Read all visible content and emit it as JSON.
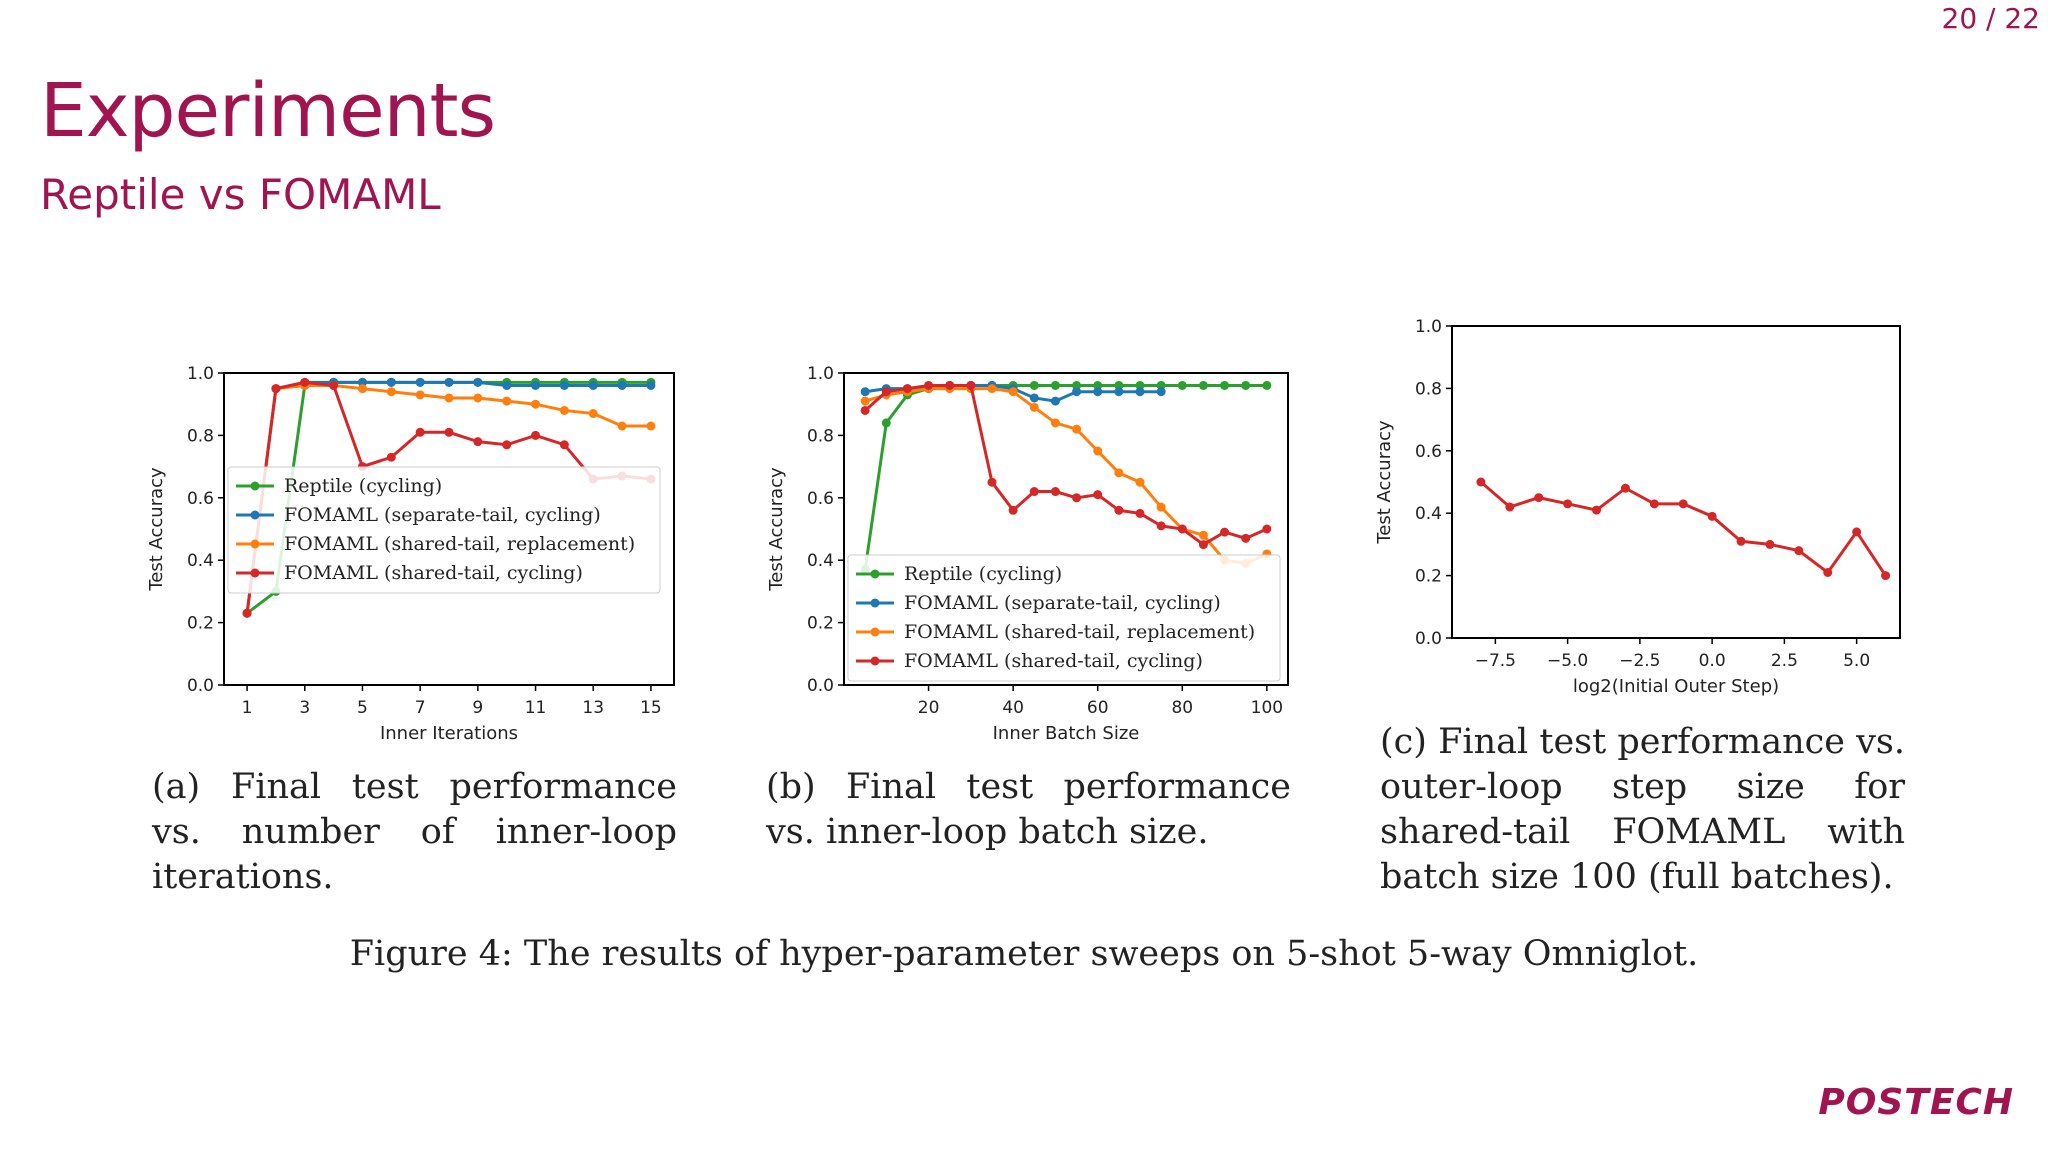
{
  "page_number": "20 / 22",
  "title": "Experiments",
  "subtitle": "Reptile vs FOMAML",
  "figure_caption": "Figure 4: The results of hyper-parameter sweeps on 5-shot 5-way Omniglot.",
  "captions": [
    "(a) Final test performance vs. number of inner-loop iterations.",
    "(b) Final test performance vs. inner-loop batch size.",
    "(c) Final test performance vs. outer-loop step size for shared-tail FOMAML with batch size 100 (full batches)."
  ],
  "logo_text": "POSTECH",
  "colors": {
    "accent": "#a0144f",
    "reptile": "#2ca02c",
    "separate": "#1f77b4",
    "replacement": "#ff7f0e",
    "cycling": "#d62728"
  },
  "chart_data": [
    {
      "type": "line",
      "xlabel": "Inner Iterations",
      "ylabel": "Test Accuracy",
      "xlim": [
        0.2,
        15.8
      ],
      "ylim": [
        0,
        1.0
      ],
      "xticks": [
        1,
        3,
        5,
        7,
        9,
        11,
        13,
        15
      ],
      "yticks": [
        0.0,
        0.2,
        0.4,
        0.6,
        0.8,
        1.0
      ],
      "legend_position": "center-right",
      "series": [
        {
          "name": "Reptile (cycling)",
          "color": "#2ca02c",
          "x": [
            1,
            2,
            3,
            4,
            5,
            6,
            7,
            8,
            9,
            10,
            11,
            12,
            13,
            14,
            15
          ],
          "y": [
            0.23,
            0.3,
            0.96,
            0.97,
            0.97,
            0.97,
            0.97,
            0.97,
            0.97,
            0.97,
            0.97,
            0.97,
            0.97,
            0.97,
            0.97
          ]
        },
        {
          "name": "FOMAML (separate-tail, cycling)",
          "color": "#1f77b4",
          "x": [
            1,
            2,
            3,
            4,
            5,
            6,
            7,
            8,
            9,
            10,
            11,
            12,
            13,
            14,
            15
          ],
          "y": [
            0.23,
            0.95,
            0.97,
            0.97,
            0.97,
            0.97,
            0.97,
            0.97,
            0.97,
            0.96,
            0.96,
            0.96,
            0.96,
            0.96,
            0.96
          ]
        },
        {
          "name": "FOMAML (shared-tail, replacement)",
          "color": "#ff7f0e",
          "x": [
            1,
            2,
            3,
            4,
            5,
            6,
            7,
            8,
            9,
            10,
            11,
            12,
            13,
            14,
            15
          ],
          "y": [
            0.23,
            0.95,
            0.96,
            0.96,
            0.95,
            0.94,
            0.93,
            0.92,
            0.92,
            0.91,
            0.9,
            0.88,
            0.87,
            0.83,
            0.83
          ]
        },
        {
          "name": "FOMAML (shared-tail, cycling)",
          "color": "#d62728",
          "x": [
            1,
            2,
            3,
            4,
            5,
            6,
            7,
            8,
            9,
            10,
            11,
            12,
            13,
            14,
            15
          ],
          "y": [
            0.23,
            0.95,
            0.97,
            0.96,
            0.7,
            0.73,
            0.81,
            0.81,
            0.78,
            0.77,
            0.8,
            0.77,
            0.66,
            0.67,
            0.66
          ]
        }
      ]
    },
    {
      "type": "line",
      "xlabel": "Inner Batch Size",
      "ylabel": "Test Accuracy",
      "xlim": [
        0,
        105
      ],
      "ylim": [
        0,
        1.0
      ],
      "xticks": [
        20,
        40,
        60,
        80,
        100
      ],
      "yticks": [
        0.0,
        0.2,
        0.4,
        0.6,
        0.8,
        1.0
      ],
      "legend_position": "lower-right",
      "series": [
        {
          "name": "Reptile (cycling)",
          "color": "#2ca02c",
          "x": [
            5,
            10,
            15,
            20,
            25,
            30,
            35,
            40,
            45,
            50,
            55,
            60,
            65,
            70,
            75,
            80,
            85,
            90,
            95,
            100
          ],
          "y": [
            0.37,
            0.84,
            0.93,
            0.95,
            0.96,
            0.96,
            0.96,
            0.96,
            0.96,
            0.96,
            0.96,
            0.96,
            0.96,
            0.96,
            0.96,
            0.96,
            0.96,
            0.96,
            0.96,
            0.96
          ]
        },
        {
          "name": "FOMAML (separate-tail, cycling)",
          "color": "#1f77b4",
          "x": [
            5,
            10,
            15,
            20,
            25,
            30,
            35,
            40,
            45,
            50,
            55,
            60,
            65,
            70,
            75
          ],
          "y": [
            0.94,
            0.95,
            0.95,
            0.95,
            0.96,
            0.96,
            0.96,
            0.95,
            0.92,
            0.91,
            0.94,
            0.94,
            0.94,
            0.94,
            0.94
          ]
        },
        {
          "name": "FOMAML (shared-tail, replacement)",
          "color": "#ff7f0e",
          "x": [
            5,
            10,
            15,
            20,
            25,
            30,
            35,
            40,
            45,
            50,
            55,
            60,
            65,
            70,
            75,
            80,
            85,
            90,
            95,
            100
          ],
          "y": [
            0.91,
            0.93,
            0.94,
            0.95,
            0.95,
            0.95,
            0.95,
            0.94,
            0.89,
            0.84,
            0.82,
            0.75,
            0.68,
            0.65,
            0.57,
            0.5,
            0.48,
            0.4,
            0.39,
            0.42
          ]
        },
        {
          "name": "FOMAML (shared-tail, cycling)",
          "color": "#d62728",
          "x": [
            5,
            10,
            15,
            20,
            25,
            30,
            35,
            40,
            45,
            50,
            55,
            60,
            65,
            70,
            75,
            80,
            85,
            90,
            95,
            100
          ],
          "y": [
            0.88,
            0.94,
            0.95,
            0.96,
            0.96,
            0.96,
            0.65,
            0.56,
            0.62,
            0.62,
            0.6,
            0.61,
            0.56,
            0.55,
            0.51,
            0.5,
            0.45,
            0.49,
            0.47,
            0.5
          ]
        }
      ]
    },
    {
      "type": "line",
      "xlabel": "log2(Initial Outer Step)",
      "ylabel": "Test Accuracy",
      "xlim": [
        -9,
        6.5
      ],
      "ylim": [
        0,
        1.0
      ],
      "xticks": [
        -7.5,
        -5.0,
        -2.5,
        0.0,
        2.5,
        5.0
      ],
      "xtick_labels": [
        "−7.5",
        "−5.0",
        "−2.5",
        "0.0",
        "2.5",
        "5.0"
      ],
      "yticks": [
        0.0,
        0.2,
        0.4,
        0.6,
        0.8,
        1.0
      ],
      "series": [
        {
          "color": "#d62728",
          "x": [
            -8,
            -7,
            -6,
            -5,
            -4,
            -3,
            -2,
            -1,
            0,
            1,
            2,
            3,
            4,
            5,
            6
          ],
          "y": [
            0.5,
            0.42,
            0.45,
            0.43,
            0.41,
            0.48,
            0.43,
            0.43,
            0.39,
            0.31,
            0.3,
            0.28,
            0.21,
            0.34,
            0.2
          ]
        }
      ]
    }
  ]
}
